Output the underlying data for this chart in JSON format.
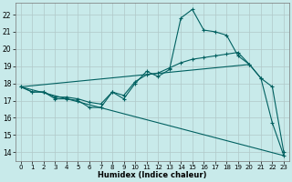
{
  "xlabel": "Humidex (Indice chaleur)",
  "bg_color": "#c8eaea",
  "grid_color": "#b0c8c8",
  "line_color": "#006060",
  "xlim": [
    -0.5,
    23.5
  ],
  "ylim": [
    13.5,
    22.7
  ],
  "xticks": [
    0,
    1,
    2,
    3,
    4,
    5,
    6,
    7,
    8,
    9,
    10,
    11,
    12,
    13,
    14,
    15,
    16,
    17,
    18,
    19,
    20,
    21,
    22,
    23
  ],
  "yticks": [
    14,
    15,
    16,
    17,
    18,
    19,
    20,
    21,
    22
  ],
  "line1_x": [
    0,
    1,
    2,
    3,
    4,
    5,
    6,
    7,
    8,
    9,
    10,
    11,
    12,
    13,
    14,
    15,
    16,
    17,
    18,
    19,
    20,
    21,
    22,
    23
  ],
  "line1_y": [
    17.8,
    17.5,
    17.5,
    17.1,
    17.1,
    17.0,
    16.6,
    16.6,
    17.5,
    17.1,
    18.0,
    18.7,
    18.4,
    18.8,
    21.8,
    22.3,
    21.1,
    21.0,
    20.8,
    19.6,
    19.1,
    18.3,
    15.7,
    13.8
  ],
  "line2_x": [
    0,
    1,
    2,
    3,
    4,
    5,
    6,
    7,
    8,
    9,
    10,
    11,
    12,
    13,
    14,
    15,
    16,
    17,
    18,
    19,
    20,
    21,
    22,
    23
  ],
  "line2_y": [
    17.8,
    17.5,
    17.5,
    17.2,
    17.2,
    17.1,
    16.9,
    16.8,
    17.5,
    17.3,
    18.1,
    18.5,
    18.6,
    18.9,
    19.2,
    19.4,
    19.5,
    19.6,
    19.7,
    19.8,
    19.1,
    18.3,
    17.8,
    14.0
  ],
  "line3_x": [
    0,
    23
  ],
  "line3_y": [
    17.8,
    13.8
  ],
  "line4_x": [
    0,
    20
  ],
  "line4_y": [
    17.8,
    19.1
  ]
}
